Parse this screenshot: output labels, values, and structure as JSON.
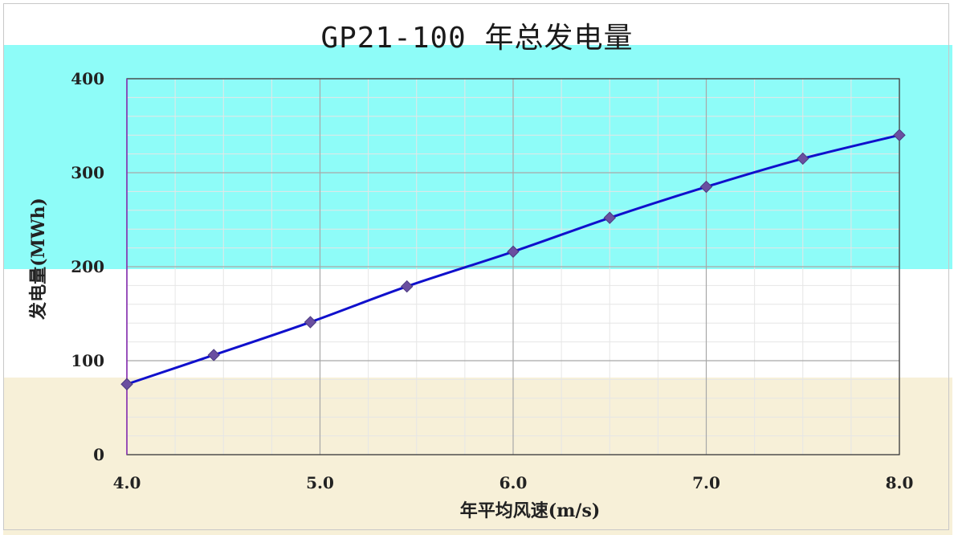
{
  "chart_data": {
    "type": "line",
    "title": "GP21-100 年总发电量",
    "xlabel": "年平均风速(m/s)",
    "ylabel": "发电量(MWh)",
    "x_ticks": [
      "4.0",
      "5.0",
      "6.0",
      "7.0",
      "8.0"
    ],
    "y_ticks": [
      "0",
      "100",
      "200",
      "300",
      "400"
    ],
    "xlim": [
      4.0,
      8.0
    ],
    "ylim": [
      0,
      400
    ],
    "grid": true,
    "legend": "none",
    "series": [
      {
        "x": [
          4.0,
          4.45,
          4.95,
          5.45,
          6.0,
          6.5,
          7.0,
          7.5,
          8.0
        ],
        "values": [
          75,
          106,
          141,
          179,
          216,
          252,
          285,
          315,
          340
        ],
        "color": "#1010cc",
        "marker": "diamond",
        "marker_color": "#6a4fa0"
      }
    ]
  }
}
